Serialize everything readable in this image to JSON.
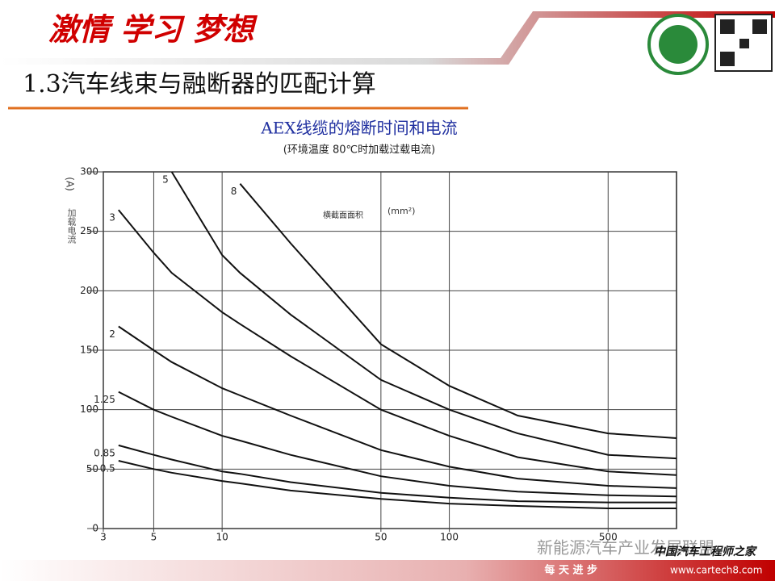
{
  "header": {
    "slogan": "激情 学习 梦想",
    "title": "1.3汽车线束与融断器的匹配计算"
  },
  "chart_data": {
    "type": "line",
    "title": "AEX线缆的熔断时间和电流",
    "subtitle": "(环境温度 80℃时加载过载电流)",
    "y_unit": "(A)",
    "y_label": "加载电流",
    "annotation": "横截面面积",
    "annotation_unit": "(mm²)",
    "x": [
      3.5,
      5,
      6,
      10,
      12,
      20,
      50,
      100,
      200,
      500,
      1000
    ],
    "series": [
      {
        "name": "0.5",
        "color": "#111111",
        "values": [
          57,
          50,
          47,
          40,
          38,
          32,
          25,
          21,
          19,
          17,
          17
        ]
      },
      {
        "name": "0.85",
        "color": "#111111",
        "values": [
          70,
          62,
          58,
          48,
          46,
          39,
          30,
          26,
          23,
          22,
          22
        ]
      },
      {
        "name": "1.25",
        "color": "#111111",
        "values": [
          115,
          100,
          94,
          78,
          74,
          62,
          44,
          36,
          31,
          28,
          27
        ]
      },
      {
        "name": "2",
        "color": "#111111",
        "values": [
          170,
          150,
          140,
          118,
          112,
          95,
          66,
          52,
          42,
          36,
          34
        ]
      },
      {
        "name": "3",
        "color": "#111111",
        "values": [
          268,
          232,
          215,
          182,
          172,
          145,
          100,
          78,
          60,
          48,
          45
        ]
      },
      {
        "name": "5",
        "color": "#111111",
        "values": [
          null,
          null,
          300,
          230,
          215,
          180,
          125,
          100,
          80,
          62,
          59
        ]
      },
      {
        "name": "8",
        "color": "#111111",
        "values": [
          null,
          null,
          null,
          null,
          290,
          240,
          155,
          120,
          95,
          80,
          76
        ]
      }
    ],
    "xscale": "log",
    "xlim": [
      3,
      1000
    ],
    "xticks": [
      3,
      5,
      10,
      50,
      100,
      500
    ],
    "ylim": [
      0,
      300
    ],
    "yticks": [
      0,
      50,
      100,
      150,
      200,
      250,
      300
    ],
    "grid": true
  },
  "watermark": {
    "account": "新能源汽车产业发展联盟",
    "site_name": "中国汽车工程师之家",
    "url": "www.cartech8.com"
  },
  "footer": {
    "motto": "每 天 进 步"
  }
}
